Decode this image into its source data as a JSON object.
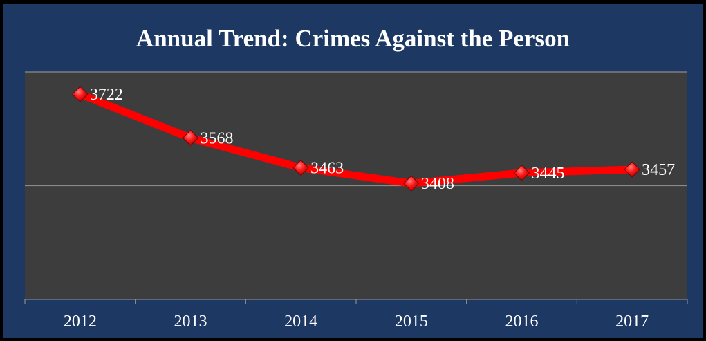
{
  "chart_data": {
    "type": "line",
    "title": "Annual Trend: Crimes Against the Person",
    "categories": [
      "2012",
      "2013",
      "2014",
      "2015",
      "2016",
      "2017"
    ],
    "series": [
      {
        "values": [
          3722,
          3568,
          3463,
          3408,
          3445,
          3457
        ]
      }
    ],
    "data_labels": [
      "3722",
      "3568",
      "3463",
      "3408",
      "3445",
      "3457"
    ],
    "ylim": [
      3000,
      3800
    ],
    "grid": true,
    "legend": "none",
    "colors": {
      "background": "#1c3863",
      "plot_area": "#3d3d3d",
      "line": "#ff0000",
      "marker": "#e00000",
      "gridline": "#8a8a8a",
      "text": "#ffffff"
    }
  }
}
